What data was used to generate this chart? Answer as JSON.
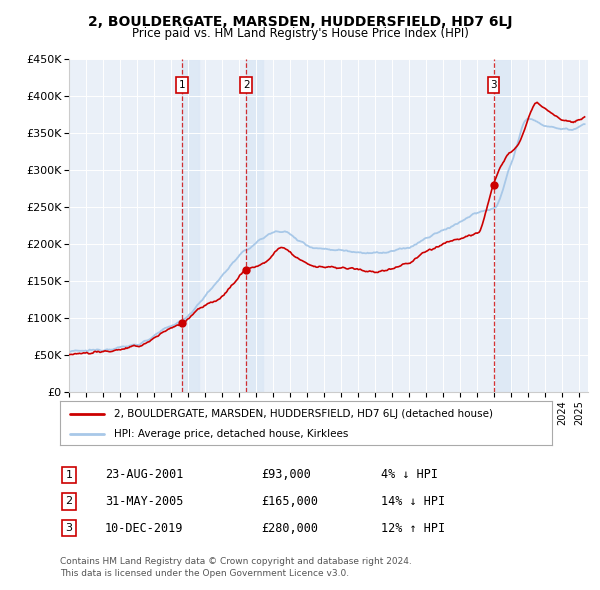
{
  "title": "2, BOULDERGATE, MARSDEN, HUDDERSFIELD, HD7 6LJ",
  "subtitle": "Price paid vs. HM Land Registry's House Price Index (HPI)",
  "ylim": [
    0,
    450000
  ],
  "yticks": [
    0,
    50000,
    100000,
    150000,
    200000,
    250000,
    300000,
    350000,
    400000,
    450000
  ],
  "ytick_labels": [
    "£0",
    "£50K",
    "£100K",
    "£150K",
    "£200K",
    "£250K",
    "£300K",
    "£350K",
    "£400K",
    "£450K"
  ],
  "hpi_color": "#a8c8e8",
  "price_color": "#cc0000",
  "sale_marker_color": "#cc0000",
  "sale_year_floats": [
    2001.64,
    2005.42,
    2019.95
  ],
  "sale_prices": [
    93000,
    165000,
    280000
  ],
  "sale_labels": [
    "1",
    "2",
    "3"
  ],
  "shade_color": "#dce8f5",
  "legend_line1": "2, BOULDERGATE, MARSDEN, HUDDERSFIELD, HD7 6LJ (detached house)",
  "legend_line2": "HPI: Average price, detached house, Kirklees",
  "table_data": [
    [
      "1",
      "23-AUG-2001",
      "£93,000",
      "4% ↓ HPI"
    ],
    [
      "2",
      "31-MAY-2005",
      "£165,000",
      "14% ↓ HPI"
    ],
    [
      "3",
      "10-DEC-2019",
      "£280,000",
      "12% ↑ HPI"
    ]
  ],
  "footer_line1": "Contains HM Land Registry data © Crown copyright and database right 2024.",
  "footer_line2": "This data is licensed under the Open Government Licence v3.0.",
  "background_color": "#ffffff",
  "plot_bg_color": "#eaf0f8"
}
